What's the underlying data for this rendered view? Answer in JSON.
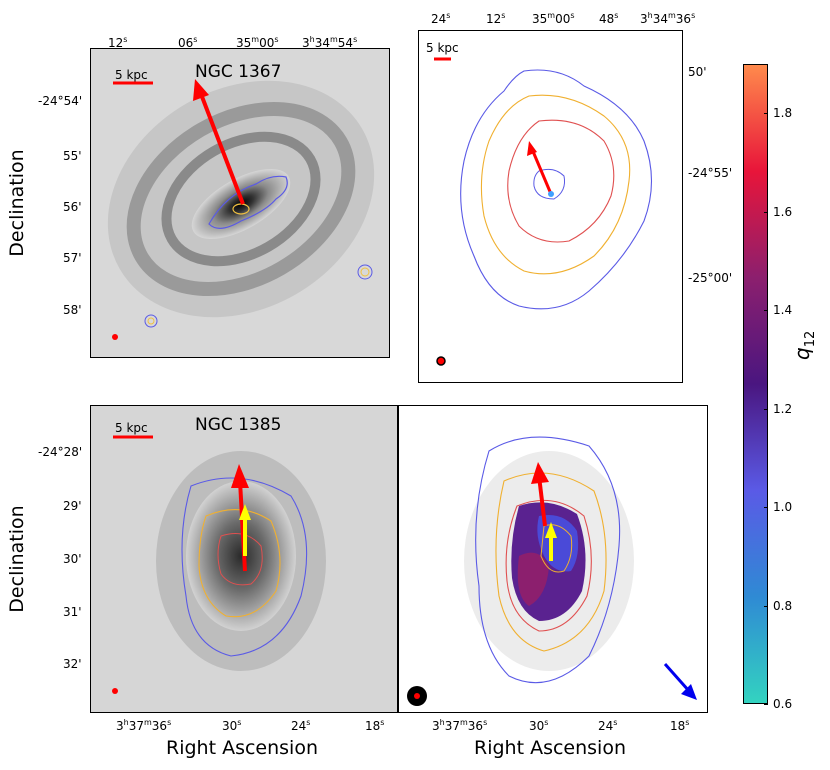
{
  "top": {
    "galaxy_name": "NGC 1367",
    "scalebar_left": "5 kpc",
    "scalebar_right": "5 kpc",
    "ra_ticks_left": [
      "12",
      "06",
      "35",
      "3"
    ],
    "dec_ticks_left": [
      "-24°54'",
      "55'",
      "56'",
      "57'",
      "58'"
    ],
    "ra_ticks_right": [
      "24",
      "12",
      "35",
      "48",
      "3"
    ],
    "dec_ticks_right": [
      "50'",
      "-24°55'",
      "-25°00'"
    ]
  },
  "bottom": {
    "galaxy_name": "NGC 1385",
    "scalebar_left": "5 kpc",
    "dec_ticks_left": [
      "-24°28'",
      "29'",
      "30'",
      "31'",
      "32'"
    ],
    "ra_ticks": [
      "3",
      "30",
      "24",
      "18"
    ]
  },
  "labels": {
    "declination": "Declination",
    "right_ascension": "Right Ascension",
    "colorbar_label": "q",
    "colorbar_sub": "12"
  },
  "colorbar": {
    "ticks": [
      "1.8",
      "1.6",
      "1.4",
      "1.2",
      "1.0",
      "0.8",
      "0.6"
    ],
    "min": 0.6,
    "max": 1.9,
    "colors": [
      "#ff8a4c",
      "#e8153a",
      "#8c1f6e",
      "#4a1680",
      "#5a5ae6",
      "#2f8ad4",
      "#33d3c0"
    ]
  }
}
